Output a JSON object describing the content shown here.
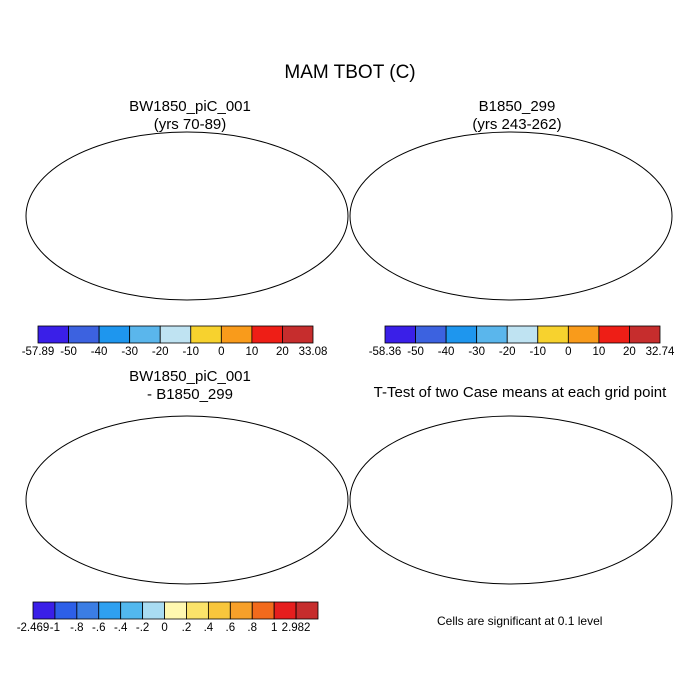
{
  "title": "MAM TBOT (C)",
  "panels": [
    {
      "title_line1": "BW1850_piC_001",
      "title_line2": "(yrs 70-89)"
    },
    {
      "title_line1": "B1850_299",
      "title_line2": "(yrs 243-262)"
    },
    {
      "title_line1": "BW1850_piC_001",
      "title_line2": "- B1850_299"
    },
    {
      "title_line1": "T-Test of two Case means at each grid point",
      "title_line2": ""
    }
  ],
  "colorbars": [
    {
      "colors": [
        "#3a1fe8",
        "#3c62e0",
        "#1e96ee",
        "#5ab6ec",
        "#bfe3f2",
        "#f7d22e",
        "#f99b1b",
        "#ee1e16",
        "#c62d2d"
      ],
      "labels": [
        "-57.89",
        "-50",
        "-40",
        "-30",
        "-20",
        "-10",
        "0",
        "10",
        "20",
        "33.08"
      ]
    },
    {
      "colors": [
        "#3a1fe8",
        "#3c62e0",
        "#1e96ee",
        "#5ab6ec",
        "#bfe3f2",
        "#f7d22e",
        "#f99b1b",
        "#ee1e16",
        "#c62d2d"
      ],
      "labels": [
        "-58.36",
        "-50",
        "-40",
        "-30",
        "-20",
        "-10",
        "0",
        "10",
        "20",
        "32.74"
      ]
    },
    {
      "colors": [
        "#3a1fe8",
        "#2d5fe8",
        "#3b7de4",
        "#2ea0f0",
        "#52b8ee",
        "#a9dcf2",
        "#fff8b0",
        "#fbe36a",
        "#f8c63c",
        "#f7a02a",
        "#f26a1c",
        "#e61e1e",
        "#c62d2d"
      ],
      "labels": [
        "-2.469",
        "-1",
        "-.8",
        "-.6",
        "-.4",
        "-.2",
        "0",
        ".2",
        ".4",
        ".6",
        ".8",
        "1",
        "2.982"
      ]
    }
  ],
  "significance_note": "Cells are significant at 0.1 level"
}
